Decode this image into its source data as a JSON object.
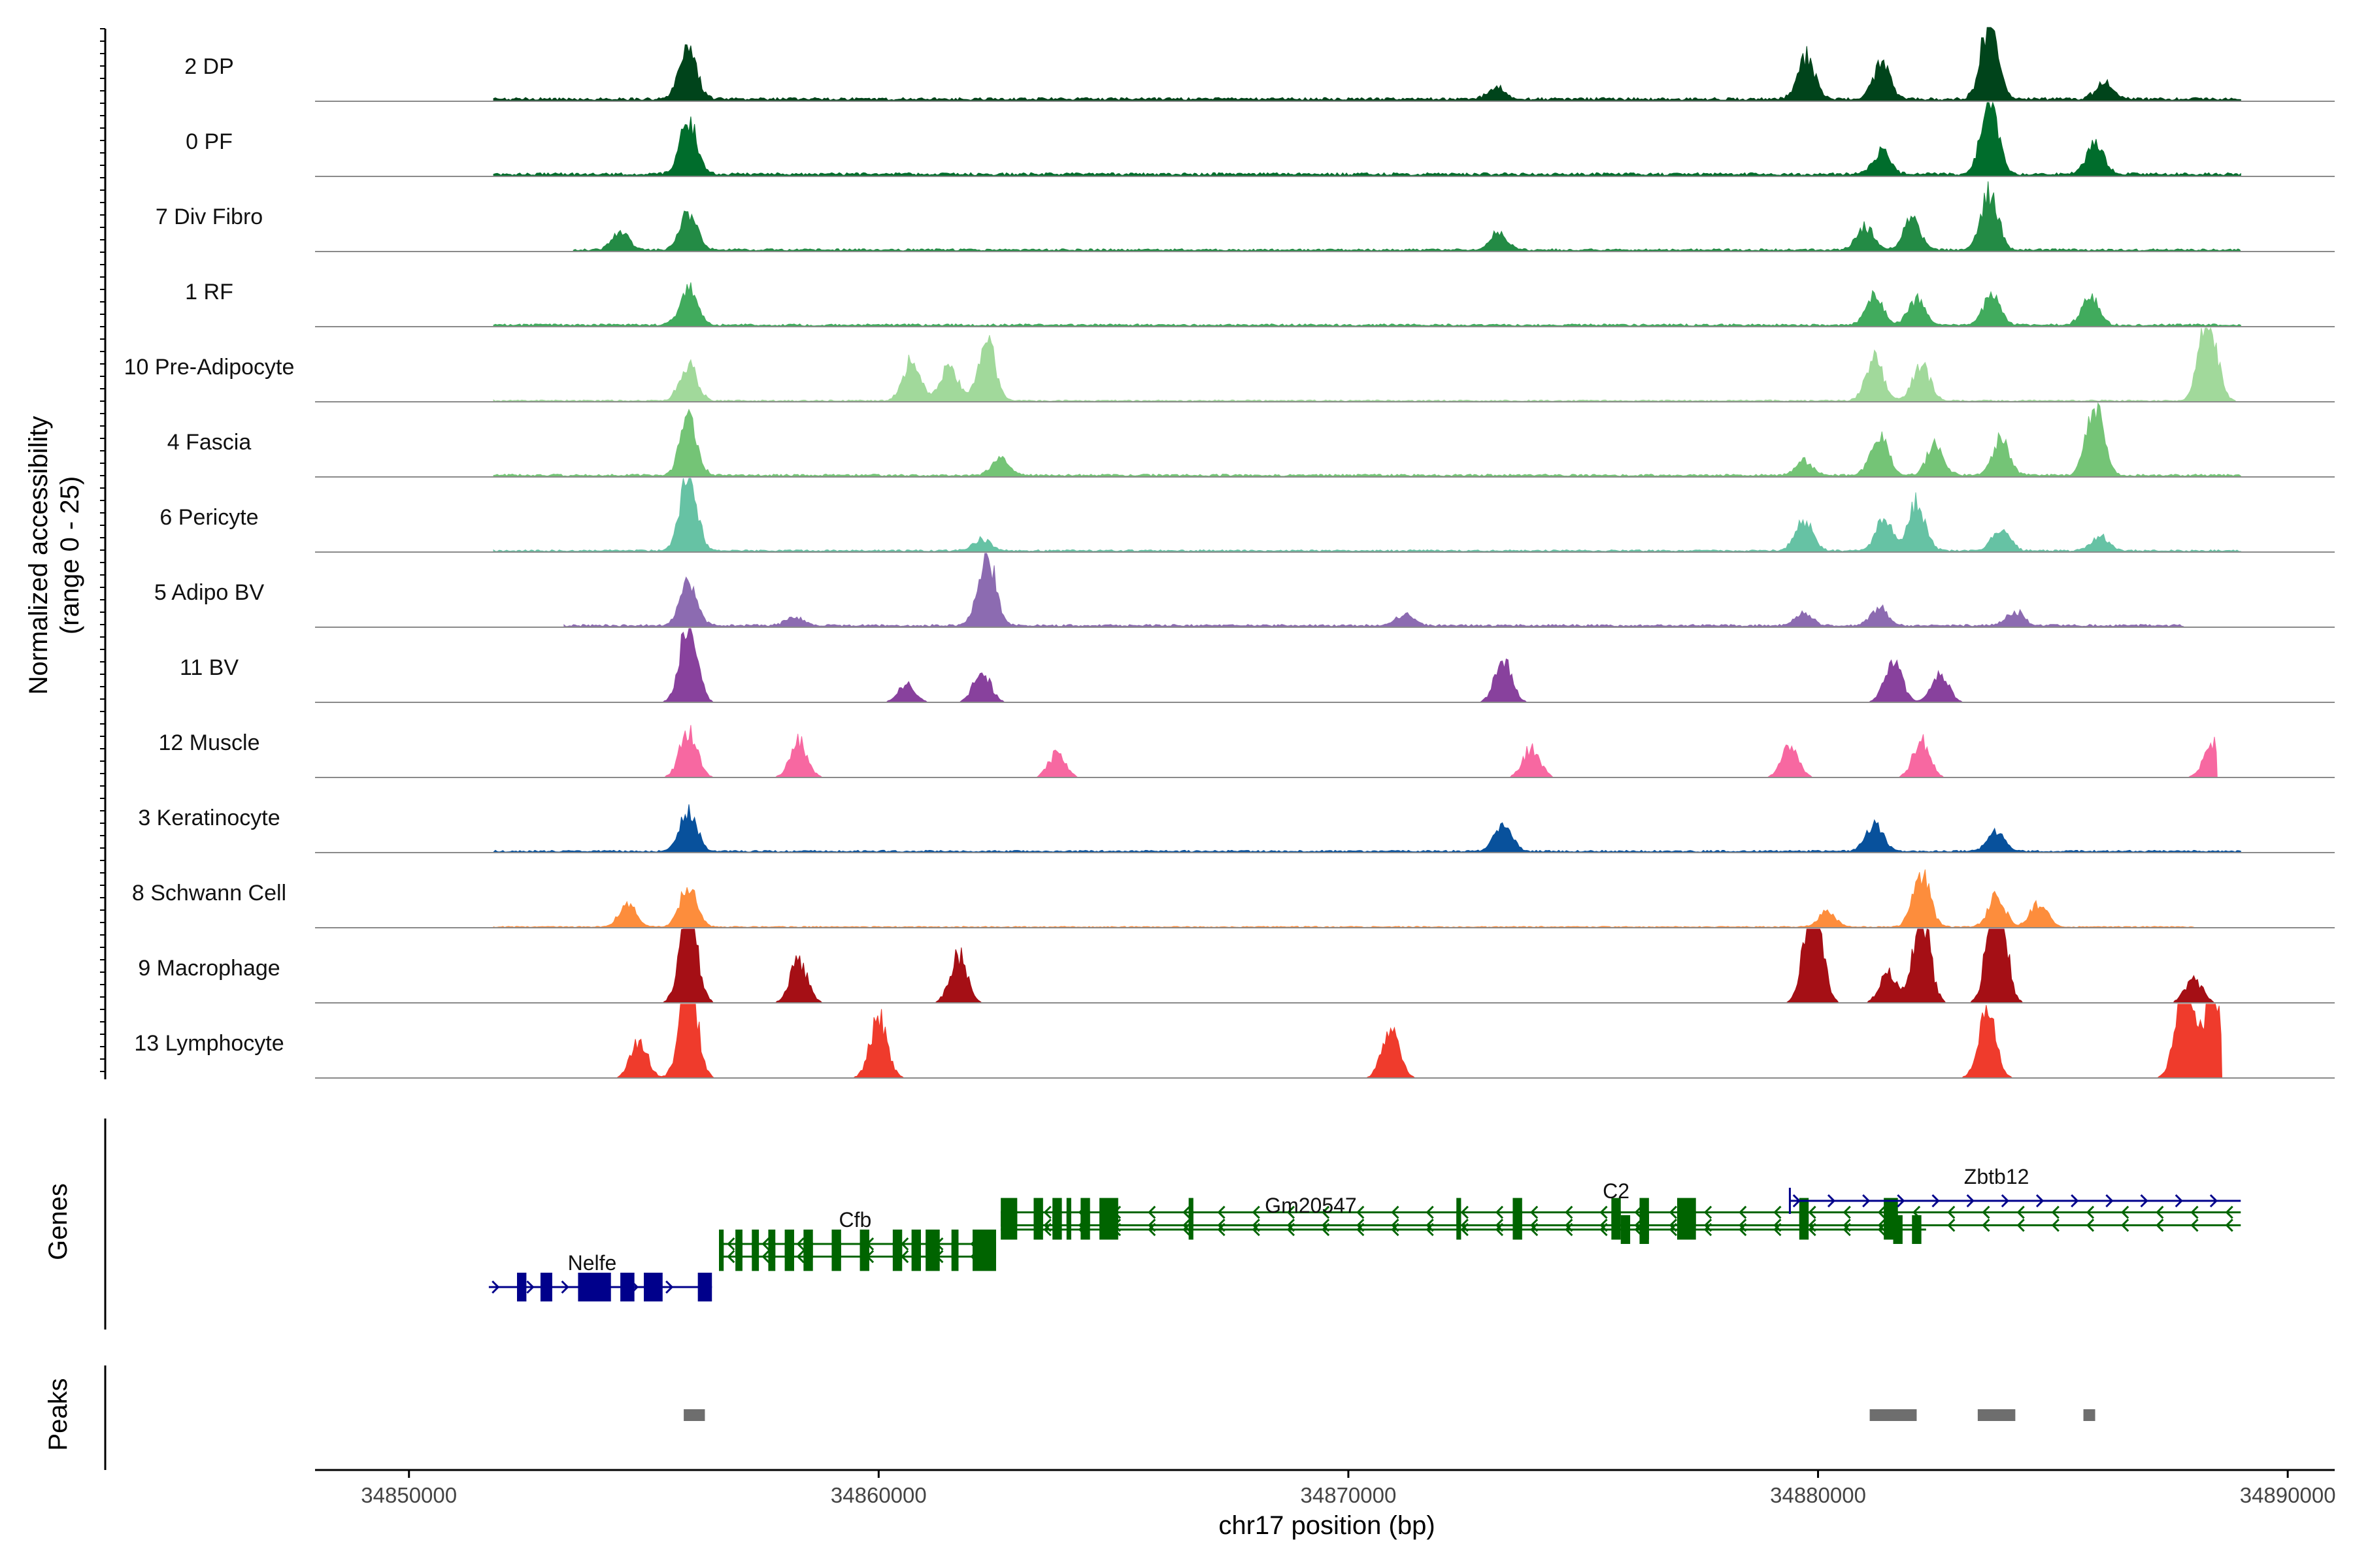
{
  "chart_data": {
    "type": "coverage",
    "xlabel": "chr17 position (bp)",
    "ylabel_line1": "Normalized accessibility",
    "ylabel_line2": "(range 0 - 25)",
    "genes_label": "Genes",
    "peaks_label": "Peaks",
    "xlim": [
      34848000,
      34891000
    ],
    "x_ticks": [
      34850000,
      34860000,
      34870000,
      34880000,
      34890000
    ],
    "x_tick_labels": [
      "34850000",
      "34860000",
      "34870000",
      "34880000",
      "34890000"
    ],
    "y_range": [
      0,
      25
    ],
    "tracks": [
      {
        "name": "2 DP",
        "color": "#00441b",
        "data_start": 34851800,
        "data_end": 34889000,
        "base": 0.8,
        "peaks": [
          [
            34855950,
            18
          ],
          [
            34879750,
            14
          ],
          [
            34881350,
            12
          ],
          [
            34883650,
            26
          ],
          [
            34886100,
            6
          ],
          [
            34873150,
            4
          ]
        ]
      },
      {
        "name": "0 PF",
        "color": "#006d2c",
        "data_start": 34851800,
        "data_end": 34889000,
        "base": 0.8,
        "peaks": [
          [
            34855950,
            18
          ],
          [
            34881350,
            8
          ],
          [
            34883650,
            26
          ],
          [
            34885900,
            10
          ]
        ]
      },
      {
        "name": "7 Div Fibro",
        "color": "#238b45",
        "data_start": 34853500,
        "data_end": 34889000,
        "base": 0.6,
        "peaks": [
          [
            34855950,
            12
          ],
          [
            34854500,
            6
          ],
          [
            34882000,
            10
          ],
          [
            34883650,
            19
          ],
          [
            34881000,
            8
          ],
          [
            34873200,
            6
          ]
        ]
      },
      {
        "name": "1 RF",
        "color": "#41ab5d",
        "data_start": 34851800,
        "data_end": 34889000,
        "base": 0.6,
        "peaks": [
          [
            34855950,
            12
          ],
          [
            34881200,
            10
          ],
          [
            34882100,
            9
          ],
          [
            34883700,
            10
          ],
          [
            34885800,
            9
          ]
        ]
      },
      {
        "name": "10 Pre-Adipocyte",
        "color": "#a1d99b",
        "data_start": 34851800,
        "data_end": 34888900,
        "base": 0.4,
        "peaks": [
          [
            34855950,
            12
          ],
          [
            34860700,
            14
          ],
          [
            34862300,
            20
          ],
          [
            34861500,
            12
          ],
          [
            34881200,
            14
          ],
          [
            34882200,
            12
          ],
          [
            34888300,
            30
          ]
        ]
      },
      {
        "name": "4 Fascia",
        "color": "#74c476",
        "data_start": 34851800,
        "data_end": 34889000,
        "base": 0.6,
        "peaks": [
          [
            34855950,
            18
          ],
          [
            34862600,
            6
          ],
          [
            34881300,
            14
          ],
          [
            34882500,
            10
          ],
          [
            34883900,
            12
          ],
          [
            34885900,
            25
          ],
          [
            34879700,
            5
          ]
        ]
      },
      {
        "name": "6 Pericyte",
        "color": "#66c2a4",
        "data_start": 34851800,
        "data_end": 34889000,
        "base": 0.5,
        "peaks": [
          [
            34855950,
            26
          ],
          [
            34879700,
            10
          ],
          [
            34881400,
            10
          ],
          [
            34882100,
            16
          ],
          [
            34883900,
            8
          ],
          [
            34886000,
            5
          ],
          [
            34862200,
            4
          ]
        ]
      },
      {
        "name": "5 Adipo BV",
        "color": "#8c6bb1",
        "data_start": 34853300,
        "data_end": 34887800,
        "base": 0.6,
        "peaks": [
          [
            34855950,
            14
          ],
          [
            34862300,
            24
          ],
          [
            34871200,
            4
          ],
          [
            34879700,
            4
          ],
          [
            34881300,
            6
          ],
          [
            34884200,
            5
          ],
          [
            34858200,
            3
          ]
        ]
      },
      {
        "name": "11 BV",
        "color": "#88419d",
        "data_start": 34852000,
        "data_end": 34886500,
        "base": 0.0,
        "peaks": [
          [
            34855950,
            28
          ],
          [
            34873300,
            14
          ],
          [
            34881600,
            14
          ],
          [
            34882600,
            10
          ],
          [
            34862200,
            10
          ],
          [
            34860600,
            6
          ]
        ]
      },
      {
        "name": "12 Muscle",
        "color": "#f768a1",
        "data_start": 34852000,
        "data_end": 34888500,
        "base": 0.0,
        "peaks": [
          [
            34855950,
            16
          ],
          [
            34858300,
            12
          ],
          [
            34873900,
            10
          ],
          [
            34879400,
            10
          ],
          [
            34882200,
            12
          ],
          [
            34888400,
            12
          ],
          [
            34863800,
            8
          ]
        ]
      },
      {
        "name": "3 Keratinocyte",
        "color": "#08519c",
        "data_start": 34851800,
        "data_end": 34889000,
        "base": 0.5,
        "peaks": [
          [
            34855950,
            14
          ],
          [
            34873300,
            10
          ],
          [
            34881200,
            9
          ],
          [
            34883800,
            7
          ]
        ]
      },
      {
        "name": "8 Schwann Cell",
        "color": "#fd8d3c",
        "data_start": 34851800,
        "data_end": 34888000,
        "base": 0.3,
        "peaks": [
          [
            34855950,
            14
          ],
          [
            34854650,
            8
          ],
          [
            34882200,
            18
          ],
          [
            34883800,
            10
          ],
          [
            34884700,
            8
          ],
          [
            34880200,
            5
          ]
        ]
      },
      {
        "name": "9 Macrophage",
        "color": "#a50f15",
        "data_start": 34851800,
        "data_end": 34888600,
        "base": 0.0,
        "peaks": [
          [
            34855950,
            32
          ],
          [
            34858300,
            14
          ],
          [
            34861700,
            16
          ],
          [
            34879900,
            40
          ],
          [
            34882200,
            30
          ],
          [
            34883800,
            45
          ],
          [
            34881500,
            10
          ],
          [
            34888000,
            8
          ]
        ]
      },
      {
        "name": "13 Lymphocyte",
        "color": "#ef3b2c",
        "data_start": 34852500,
        "data_end": 34888600,
        "base": 0.0,
        "peaks": [
          [
            34855950,
            36
          ],
          [
            34854900,
            12
          ],
          [
            34860000,
            20
          ],
          [
            34870900,
            16
          ],
          [
            34883600,
            22
          ],
          [
            34887800,
            36
          ],
          [
            34888400,
            30
          ]
        ]
      }
    ],
    "genes": [
      {
        "name": "Nelfe",
        "strand": "+",
        "color": "#00008b",
        "row": 3,
        "start": 34851700,
        "end": 34856450,
        "label_x": 34853900,
        "label_row": 3,
        "exons": [
          [
            34852300,
            34852500
          ],
          [
            34852800,
            34853050
          ],
          [
            34853600,
            34854300
          ],
          [
            34854500,
            34854800
          ],
          [
            34855000,
            34855400
          ],
          [
            34856150,
            34856450
          ]
        ]
      },
      {
        "name": "Cfb",
        "strand": "-",
        "color": "#006400",
        "row": 1.5,
        "start": 34856600,
        "end": 34862500,
        "label_x": 34859500,
        "label_row": 1.5,
        "exons": [
          [
            34856600,
            34856700
          ],
          [
            34856950,
            34857100
          ],
          [
            34857300,
            34857450
          ],
          [
            34857650,
            34857800
          ],
          [
            34858000,
            34858200
          ],
          [
            34858400,
            34858600
          ],
          [
            34859000,
            34859200
          ],
          [
            34859600,
            34859800
          ],
          [
            34860300,
            34860500
          ],
          [
            34860700,
            34860900
          ],
          [
            34861000,
            34861300
          ],
          [
            34861550,
            34861700
          ],
          [
            34862000,
            34862500
          ]
        ]
      },
      {
        "name": "Gm20547",
        "strand": "-",
        "color": "#006400",
        "row": 1,
        "start": 34862600,
        "end": 34889000,
        "label_x": 34869200,
        "label_row": 1,
        "exons": [
          [
            34862600,
            34862950
          ],
          [
            34863300,
            34863500
          ],
          [
            34863700,
            34863900
          ],
          [
            34864000,
            34864100
          ],
          [
            34864300,
            34864500
          ],
          [
            34864700,
            34865100
          ],
          [
            34866600,
            34866700
          ],
          [
            34872300,
            34872400
          ],
          [
            34873500,
            34873700
          ],
          [
            34875600,
            34875800
          ],
          [
            34876200,
            34876400
          ],
          [
            34877000,
            34877400
          ],
          [
            34879600,
            34879800
          ],
          [
            34881400,
            34881700
          ]
        ]
      },
      {
        "name": "C2",
        "strand": "-",
        "color": "#006400",
        "row": 1,
        "start": 34862600,
        "end": 34882300,
        "label_x": 34875700,
        "label_row": 0.5,
        "exons": [
          [
            34875800,
            34876000
          ],
          [
            34876200,
            34876400
          ],
          [
            34881600,
            34881800
          ],
          [
            34882000,
            34882200
          ]
        ]
      },
      {
        "name": "Zbtb12",
        "strand": "+",
        "color": "#00008b",
        "row": 0,
        "start": 34879400,
        "end": 34889000,
        "label_x": 34883800,
        "label_row": 0,
        "exons": []
      }
    ],
    "peak_regions": [
      [
        34855850,
        34856300
      ],
      [
        34881100,
        34882100
      ],
      [
        34883400,
        34884200
      ],
      [
        34885650,
        34885900
      ]
    ]
  }
}
